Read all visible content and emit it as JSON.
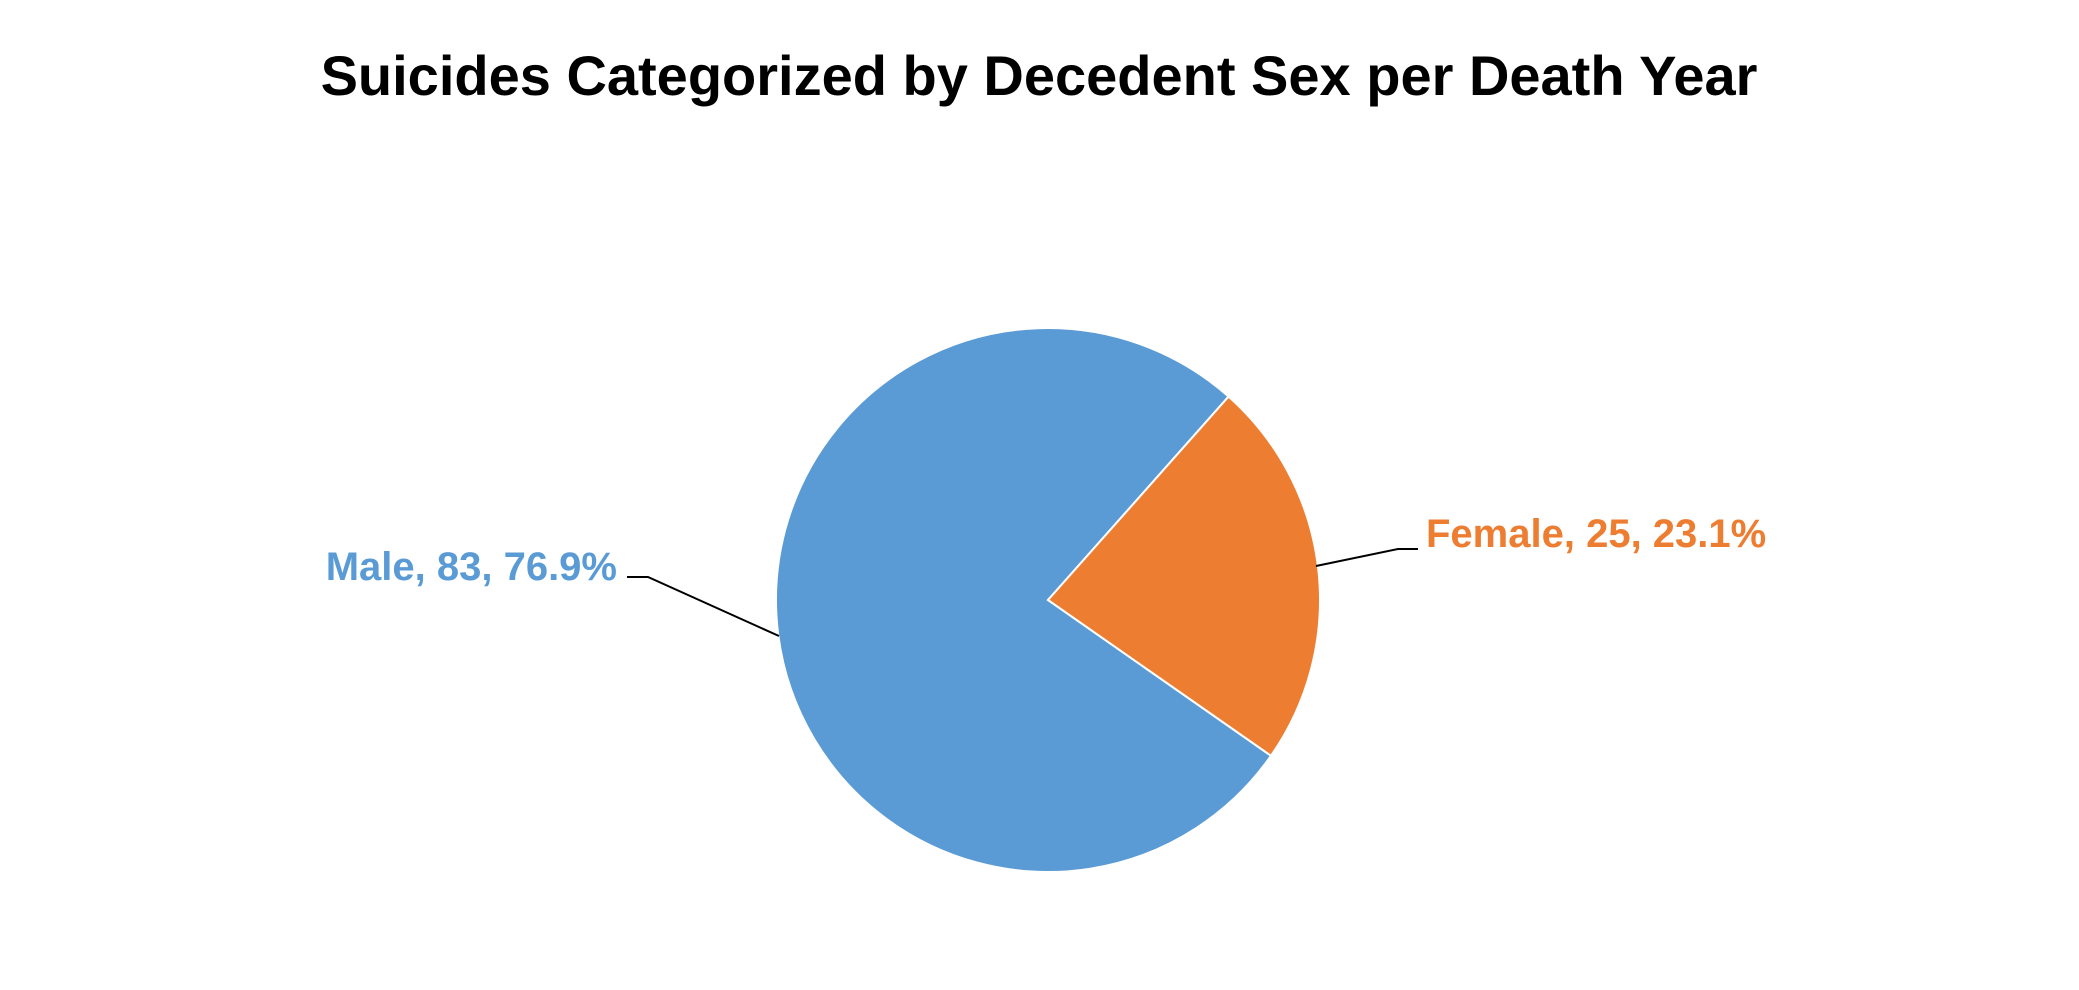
{
  "chart_data": {
    "type": "pie",
    "title": "Suicides Categorized by Decedent Sex per Death Year",
    "slices": [
      {
        "label": "Male",
        "value": 83,
        "percent": "76.9%",
        "color": "#5B9BD5"
      },
      {
        "label": "Female",
        "value": 25,
        "percent": "23.1%",
        "color": "#ED7D31"
      }
    ],
    "data_labels": [
      "Male, 83, 76.9%",
      "Female, 25, 23.1%"
    ],
    "legend": "none"
  }
}
